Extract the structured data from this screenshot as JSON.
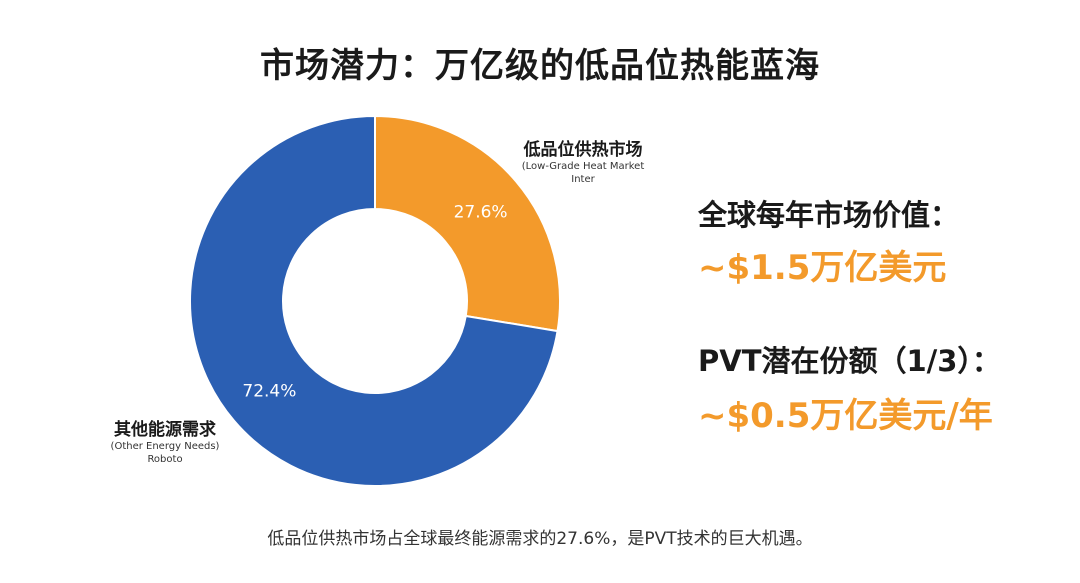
{
  "title": "市场潜力：万亿级的低品位热能蓝海",
  "chart_data": {
    "type": "pie",
    "style": "donut",
    "title": "",
    "categories": [
      {
        "label": "低品位供热市场",
        "sublabel": "(Low-Grade Heat Market",
        "extra": "Inter",
        "value": 27.6,
        "value_label": "27.6%",
        "color": "#f39a2b"
      },
      {
        "label": "其他能源需求",
        "sublabel": "(Other Energy Needs)",
        "extra": "Roboto",
        "value": 72.4,
        "value_label": "72.4%",
        "color": "#2b5fb3"
      }
    ],
    "legend": "none",
    "grid": false
  },
  "metrics": [
    {
      "label": "全球每年市场价值：",
      "value": "~$1.5万亿美元"
    },
    {
      "label": "PVT潜在份额（1/3）：",
      "value": "~$0.5万亿美元/年"
    }
  ],
  "caption": "低品位供热市场占全球最终能源需求的27.6%，是PVT技术的巨大机遇。",
  "colors": {
    "accent": "#f39a2b",
    "blue": "#2b5fb3",
    "text": "#1a1a1a"
  }
}
